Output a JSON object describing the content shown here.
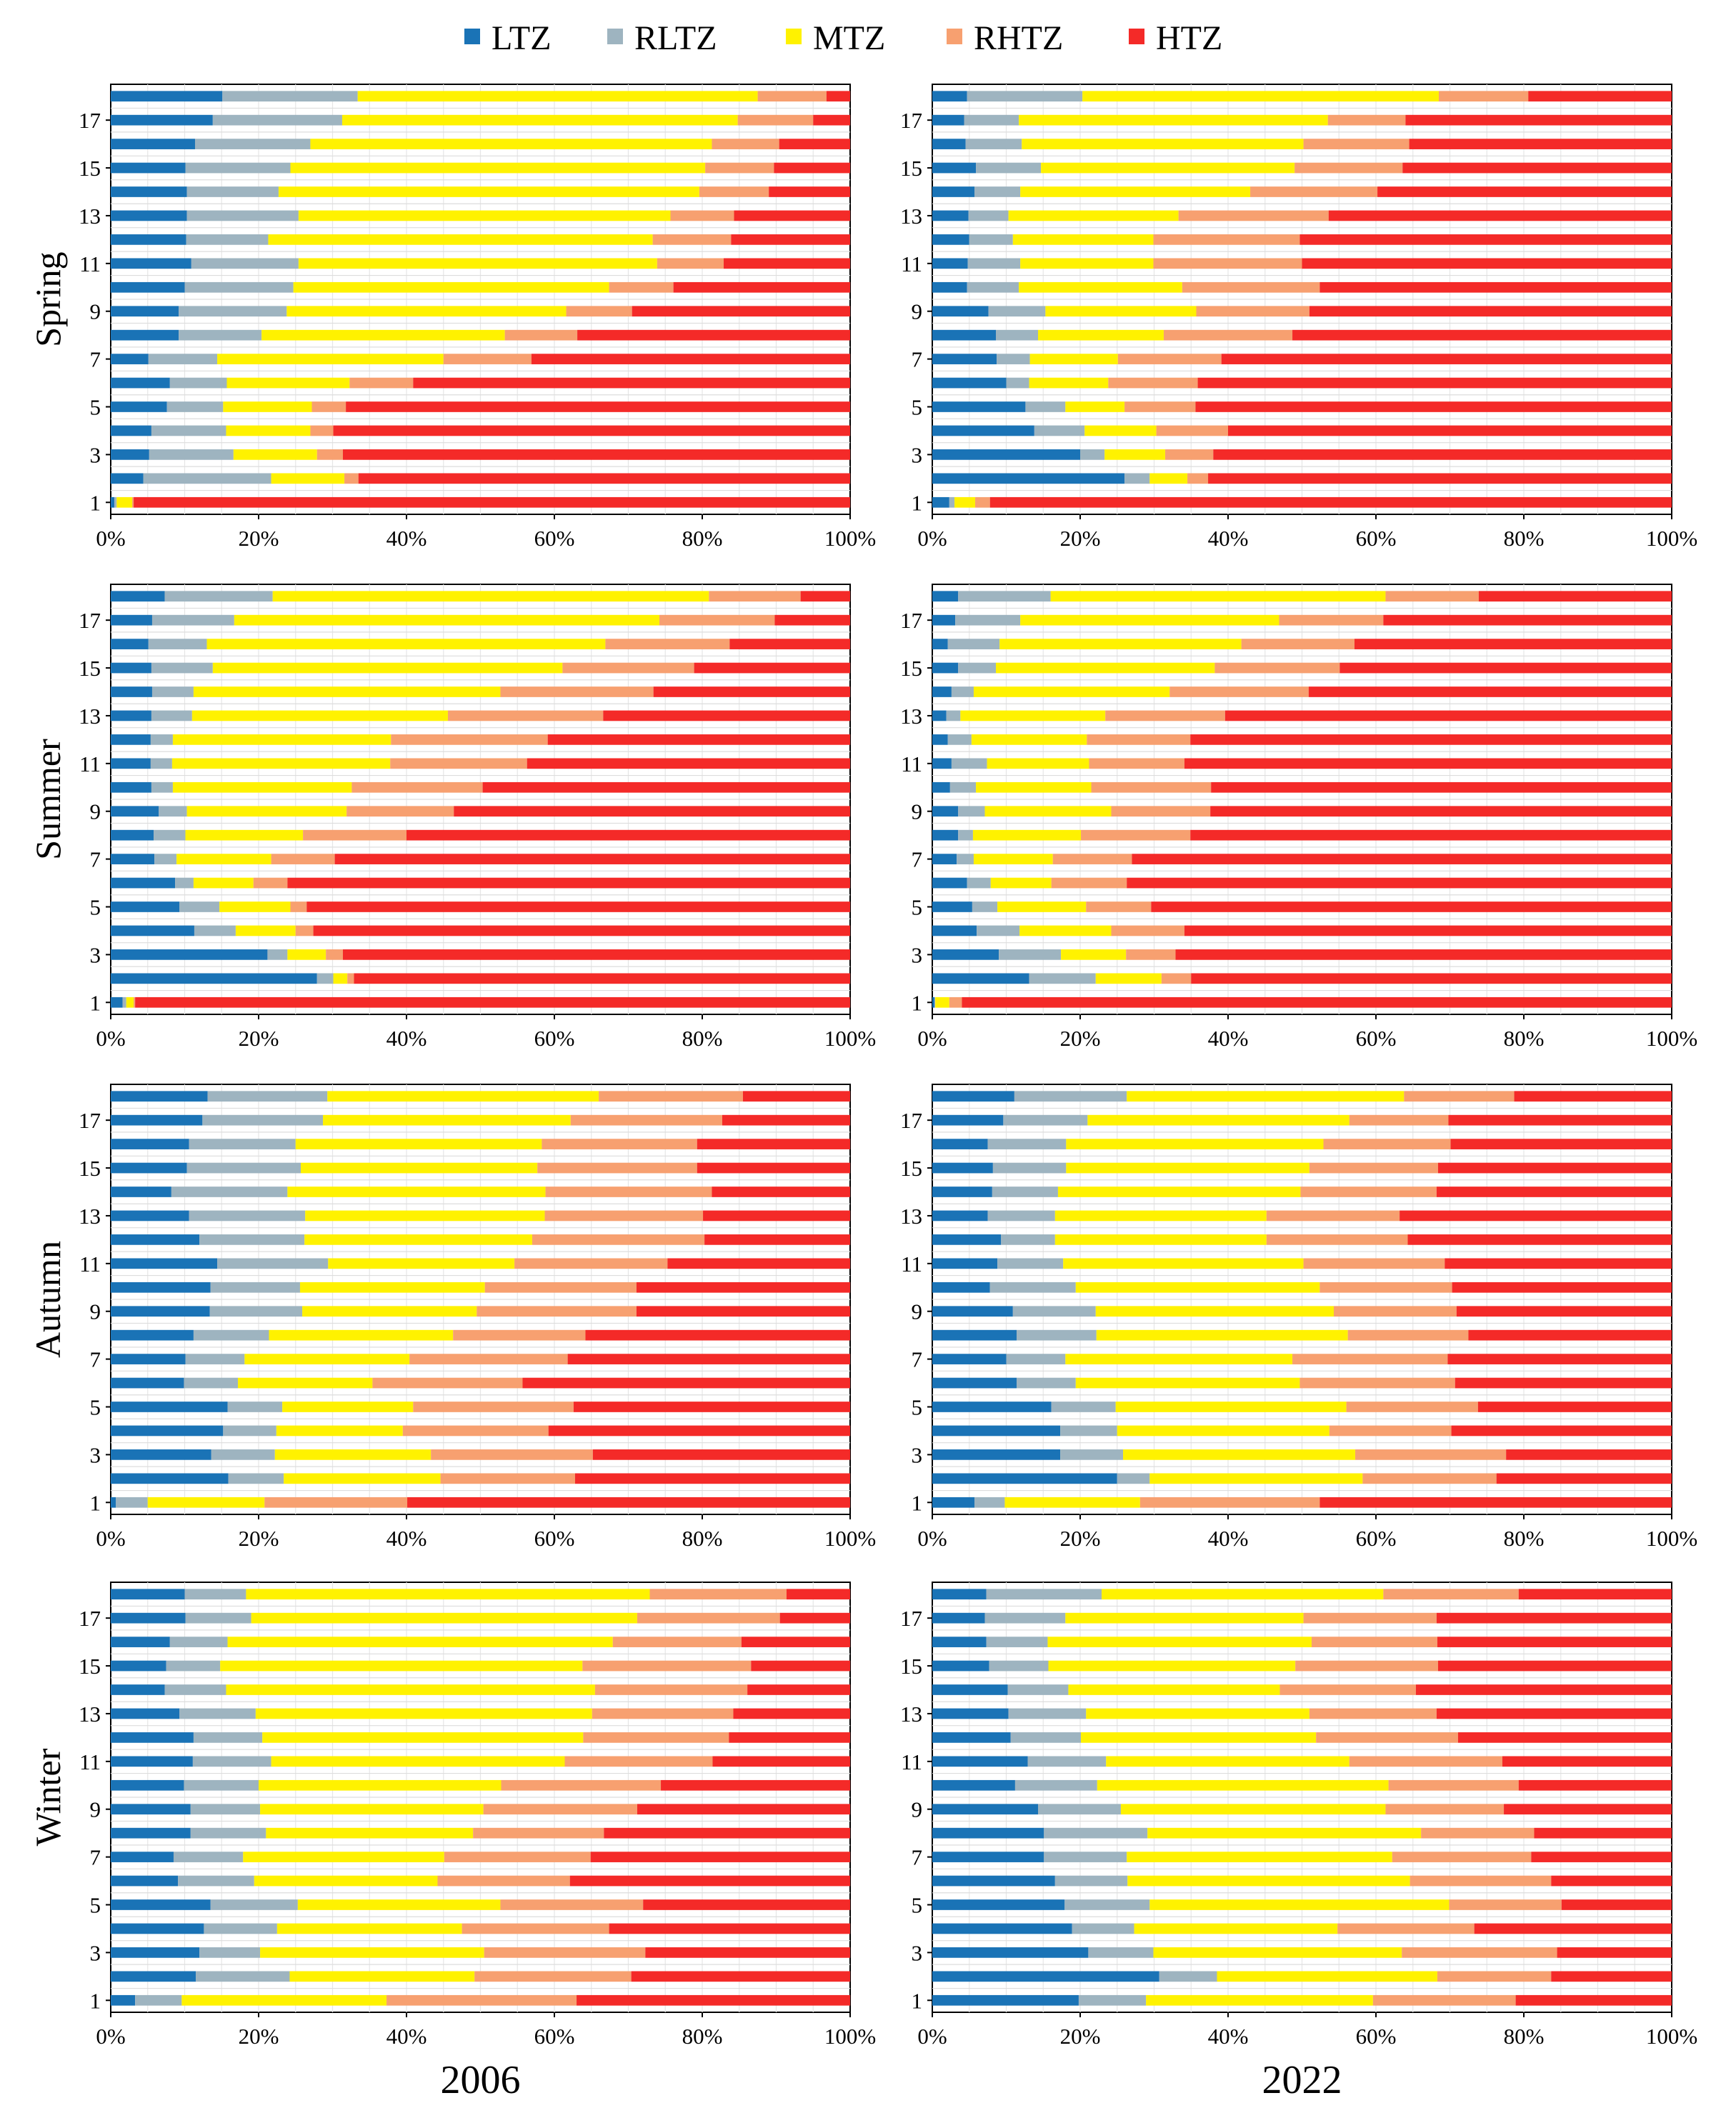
{
  "legend": {
    "items": [
      {
        "key": "LTZ",
        "label": "LTZ",
        "color": "#1a73b6"
      },
      {
        "key": "RLTZ",
        "label": "RLTZ",
        "color": "#9eb4c0"
      },
      {
        "key": "MTZ",
        "label": "MTZ",
        "color": "#fff200"
      },
      {
        "key": "RHTZ",
        "label": "RHTZ",
        "color": "#f7a070"
      },
      {
        "key": "HTZ",
        "label": "HTZ",
        "color": "#f42a28"
      }
    ]
  },
  "columns": [
    "2006",
    "2022"
  ],
  "rows": [
    "Spring",
    "Summer",
    "Autumn",
    "Winter"
  ],
  "chart_data": {
    "type": "bar",
    "orientation": "horizontal",
    "stacked": true,
    "percent": true,
    "series_names": [
      "LTZ",
      "RLTZ",
      "MTZ",
      "RHTZ",
      "HTZ"
    ],
    "categories": [
      1,
      2,
      3,
      4,
      5,
      6,
      7,
      8,
      9,
      10,
      11,
      12,
      13,
      14,
      15,
      16,
      17,
      18
    ],
    "y_tick_labels": [
      "1",
      "3",
      "5",
      "7",
      "9",
      "11",
      "13",
      "15",
      "17"
    ],
    "x_tick_labels": [
      "0%",
      "20%",
      "40%",
      "60%",
      "80%",
      "100%"
    ],
    "xlim": [
      0,
      100
    ],
    "panels": [
      {
        "season": "Spring",
        "year": "2006",
        "values": [
          [
            0.5,
            0.3,
            2.1,
            0.2,
            96.9
          ],
          [
            4.4,
            17.3,
            9.9,
            1.9,
            66.5
          ],
          [
            5.2,
            11.4,
            11.3,
            3.5,
            68.6
          ],
          [
            5.5,
            10.1,
            11.4,
            3.1,
            69.9
          ],
          [
            7.6,
            7.6,
            12.0,
            4.6,
            68.2
          ],
          [
            8.0,
            7.7,
            16.6,
            8.6,
            59.1
          ],
          [
            5.1,
            9.3,
            30.6,
            11.9,
            43.1
          ],
          [
            9.2,
            11.2,
            32.9,
            9.8,
            36.9
          ],
          [
            9.2,
            14.6,
            37.8,
            8.9,
            29.5
          ],
          [
            10.0,
            14.7,
            42.7,
            8.7,
            23.9
          ],
          [
            10.9,
            14.5,
            48.5,
            9.0,
            17.1
          ],
          [
            10.2,
            11.1,
            52.0,
            10.6,
            16.1
          ],
          [
            10.3,
            15.1,
            50.3,
            8.6,
            15.7
          ],
          [
            10.3,
            12.4,
            56.9,
            9.4,
            11.0
          ],
          [
            10.1,
            14.2,
            56.1,
            9.3,
            10.3
          ],
          [
            11.4,
            15.6,
            54.3,
            9.1,
            9.6
          ],
          [
            13.8,
            17.5,
            53.5,
            10.2,
            5.0
          ],
          [
            15.1,
            18.3,
            54.1,
            9.3,
            3.2
          ]
        ]
      },
      {
        "season": "Spring",
        "year": "2022",
        "values": [
          [
            2.3,
            0.7,
            2.8,
            2.0,
            92.2
          ],
          [
            26.0,
            3.4,
            5.1,
            2.8,
            62.7
          ],
          [
            20.0,
            3.3,
            8.2,
            6.5,
            62.0
          ],
          [
            13.8,
            6.8,
            9.7,
            9.7,
            60.0
          ],
          [
            12.6,
            5.4,
            8.0,
            9.6,
            64.4
          ],
          [
            10.0,
            3.1,
            10.7,
            12.1,
            64.1
          ],
          [
            8.7,
            4.5,
            11.9,
            14.0,
            60.9
          ],
          [
            8.6,
            5.7,
            17.0,
            17.4,
            51.3
          ],
          [
            7.6,
            7.7,
            20.4,
            15.3,
            49.0
          ],
          [
            4.7,
            7.0,
            22.1,
            18.6,
            47.6
          ],
          [
            4.8,
            7.1,
            18.0,
            20.1,
            50.0
          ],
          [
            5.0,
            5.9,
            19.0,
            19.8,
            50.3
          ],
          [
            4.9,
            5.4,
            23.0,
            20.3,
            46.4
          ],
          [
            5.7,
            6.2,
            31.1,
            17.2,
            39.8
          ],
          [
            5.9,
            8.8,
            34.3,
            14.6,
            36.4
          ],
          [
            4.5,
            7.6,
            38.1,
            14.3,
            35.5
          ],
          [
            4.3,
            7.4,
            41.8,
            10.5,
            36.0
          ],
          [
            4.7,
            15.6,
            48.2,
            12.1,
            19.4
          ]
        ]
      },
      {
        "season": "Summer",
        "year": "2006",
        "values": [
          [
            1.6,
            0.5,
            1.0,
            0.2,
            96.7
          ],
          [
            27.9,
            2.2,
            1.9,
            0.9,
            67.1
          ],
          [
            21.2,
            2.7,
            5.2,
            2.3,
            68.6
          ],
          [
            11.3,
            5.6,
            8.1,
            2.4,
            72.6
          ],
          [
            9.3,
            5.4,
            9.6,
            2.2,
            73.5
          ],
          [
            8.7,
            2.5,
            8.1,
            4.6,
            76.1
          ],
          [
            5.9,
            3.0,
            12.8,
            8.6,
            69.7
          ],
          [
            5.8,
            4.3,
            15.9,
            14.0,
            60.0
          ],
          [
            6.5,
            3.8,
            21.6,
            14.5,
            53.6
          ],
          [
            5.5,
            2.9,
            24.2,
            17.7,
            49.7
          ],
          [
            5.4,
            2.9,
            29.5,
            18.5,
            43.7
          ],
          [
            5.4,
            3.0,
            29.5,
            21.2,
            40.9
          ],
          [
            5.5,
            5.5,
            34.6,
            21.0,
            33.4
          ],
          [
            5.6,
            5.6,
            41.5,
            20.7,
            26.6
          ],
          [
            5.5,
            8.3,
            47.3,
            17.8,
            21.1
          ],
          [
            5.1,
            7.9,
            53.9,
            16.8,
            16.3
          ],
          [
            5.6,
            11.1,
            57.5,
            15.6,
            10.2
          ],
          [
            7.3,
            14.6,
            59.0,
            12.4,
            6.7
          ]
        ]
      },
      {
        "season": "Summer",
        "year": "2022",
        "values": [
          [
            0.3,
            0.1,
            1.9,
            1.7,
            96.0
          ],
          [
            13.1,
            9.0,
            8.9,
            4.0,
            65.0
          ],
          [
            9.0,
            8.4,
            8.8,
            6.7,
            67.1
          ],
          [
            6.0,
            5.8,
            12.4,
            9.9,
            65.9
          ],
          [
            5.4,
            3.4,
            12.0,
            8.8,
            70.4
          ],
          [
            4.7,
            3.2,
            8.2,
            10.2,
            73.7
          ],
          [
            3.3,
            2.3,
            10.7,
            10.7,
            73.0
          ],
          [
            3.5,
            2.0,
            14.6,
            14.8,
            65.1
          ],
          [
            3.5,
            3.6,
            17.1,
            13.4,
            62.4
          ],
          [
            2.4,
            3.5,
            15.6,
            16.2,
            62.3
          ],
          [
            2.6,
            4.8,
            13.8,
            12.9,
            65.9
          ],
          [
            2.1,
            3.2,
            15.6,
            14.0,
            65.1
          ],
          [
            1.9,
            1.9,
            19.6,
            16.2,
            60.4
          ],
          [
            2.6,
            3.0,
            26.5,
            18.8,
            49.1
          ],
          [
            3.5,
            5.1,
            29.6,
            16.9,
            44.9
          ],
          [
            2.1,
            7.0,
            32.7,
            15.3,
            42.9
          ],
          [
            3.1,
            8.8,
            35.0,
            14.1,
            39.0
          ],
          [
            3.5,
            12.5,
            45.3,
            12.6,
            26.1
          ]
        ]
      },
      {
        "season": "Autumn",
        "year": "2006",
        "values": [
          [
            0.7,
            4.3,
            15.8,
            19.3,
            59.9
          ],
          [
            15.9,
            7.5,
            21.2,
            18.2,
            37.2
          ],
          [
            13.6,
            8.6,
            21.1,
            21.9,
            34.8
          ],
          [
            15.2,
            7.2,
            17.1,
            19.7,
            40.8
          ],
          [
            15.8,
            7.4,
            17.7,
            21.7,
            37.4
          ],
          [
            9.9,
            7.3,
            18.2,
            20.3,
            44.3
          ],
          [
            10.1,
            8.0,
            22.3,
            21.4,
            38.2
          ],
          [
            11.2,
            10.2,
            24.9,
            17.9,
            35.8
          ],
          [
            13.4,
            12.5,
            23.6,
            21.6,
            28.9
          ],
          [
            13.5,
            12.1,
            25.0,
            20.5,
            28.9
          ],
          [
            14.4,
            15.0,
            25.2,
            20.7,
            24.7
          ],
          [
            12.0,
            14.2,
            30.8,
            23.3,
            19.7
          ],
          [
            10.6,
            15.7,
            32.4,
            21.4,
            19.9
          ],
          [
            8.2,
            15.7,
            34.9,
            22.5,
            18.7
          ],
          [
            10.3,
            15.4,
            32.0,
            21.6,
            20.7
          ],
          [
            10.6,
            14.4,
            33.3,
            21.0,
            20.7
          ],
          [
            12.4,
            16.3,
            33.5,
            20.5,
            17.3
          ],
          [
            13.1,
            16.2,
            36.7,
            19.5,
            14.5
          ]
        ]
      },
      {
        "season": "Autumn",
        "year": "2022",
        "values": [
          [
            5.7,
            4.1,
            18.3,
            24.3,
            47.6
          ],
          [
            25.0,
            4.4,
            28.8,
            18.1,
            23.7
          ],
          [
            17.3,
            8.5,
            31.4,
            20.4,
            22.4
          ],
          [
            17.3,
            7.7,
            28.7,
            16.5,
            29.8
          ],
          [
            16.1,
            8.7,
            31.2,
            17.8,
            26.2
          ],
          [
            11.4,
            8.0,
            30.3,
            21.0,
            29.3
          ],
          [
            10.0,
            8.0,
            30.7,
            21.0,
            30.3
          ],
          [
            11.4,
            10.8,
            34.0,
            16.3,
            27.5
          ],
          [
            10.9,
            11.2,
            32.2,
            16.6,
            29.1
          ],
          [
            7.8,
            11.6,
            33.0,
            17.9,
            29.7
          ],
          [
            8.8,
            8.9,
            32.5,
            19.1,
            30.7
          ],
          [
            9.3,
            7.3,
            28.6,
            19.1,
            35.7
          ],
          [
            7.5,
            9.1,
            28.6,
            18.0,
            36.8
          ],
          [
            8.1,
            8.9,
            32.8,
            18.4,
            31.8
          ],
          [
            8.2,
            9.9,
            32.9,
            17.4,
            31.6
          ],
          [
            7.5,
            10.6,
            34.8,
            17.2,
            29.9
          ],
          [
            9.6,
            11.4,
            35.4,
            13.4,
            30.2
          ],
          [
            11.1,
            15.2,
            37.5,
            14.9,
            21.3
          ]
        ]
      },
      {
        "season": "Winter",
        "year": "2006",
        "values": [
          [
            3.3,
            6.3,
            27.7,
            25.7,
            37.0
          ],
          [
            11.5,
            12.7,
            25.0,
            21.2,
            29.6
          ],
          [
            12.0,
            8.2,
            30.3,
            21.8,
            27.7
          ],
          [
            12.6,
            9.9,
            25.0,
            19.9,
            32.6
          ],
          [
            13.5,
            11.8,
            27.4,
            19.3,
            28.0
          ],
          [
            9.1,
            10.3,
            24.8,
            17.9,
            37.9
          ],
          [
            8.5,
            9.4,
            27.2,
            19.8,
            35.1
          ],
          [
            10.8,
            10.2,
            28.0,
            17.7,
            33.3
          ],
          [
            10.8,
            9.4,
            30.2,
            20.8,
            28.8
          ],
          [
            9.9,
            10.1,
            32.8,
            21.6,
            25.6
          ],
          [
            11.1,
            10.6,
            39.7,
            20.0,
            18.6
          ],
          [
            11.2,
            9.3,
            43.4,
            19.7,
            16.4
          ],
          [
            9.3,
            10.3,
            45.5,
            19.1,
            15.8
          ],
          [
            7.3,
            8.3,
            49.9,
            20.6,
            13.9
          ],
          [
            7.5,
            7.3,
            49.0,
            22.8,
            13.4
          ],
          [
            8.0,
            7.8,
            52.1,
            17.4,
            14.7
          ],
          [
            10.1,
            8.9,
            52.2,
            19.3,
            9.5
          ],
          [
            10.0,
            8.3,
            54.6,
            18.5,
            8.6
          ]
        ]
      },
      {
        "season": "Winter",
        "year": "2022",
        "values": [
          [
            19.8,
            9.1,
            30.7,
            19.3,
            21.1
          ],
          [
            30.7,
            7.8,
            29.8,
            15.4,
            16.3
          ],
          [
            21.1,
            8.8,
            33.6,
            21.0,
            15.5
          ],
          [
            18.9,
            8.4,
            27.5,
            18.5,
            26.7
          ],
          [
            17.9,
            11.5,
            40.5,
            15.2,
            14.9
          ],
          [
            16.6,
            9.8,
            38.2,
            19.1,
            16.3
          ],
          [
            15.1,
            11.2,
            35.9,
            18.8,
            19.0
          ],
          [
            15.1,
            14.0,
            37.0,
            15.3,
            18.6
          ],
          [
            14.3,
            11.2,
            35.8,
            16.0,
            22.7
          ],
          [
            11.2,
            11.1,
            39.4,
            17.6,
            20.7
          ],
          [
            12.9,
            10.6,
            32.9,
            20.7,
            22.9
          ],
          [
            10.6,
            9.5,
            31.8,
            19.2,
            28.9
          ],
          [
            10.3,
            10.5,
            30.2,
            17.2,
            31.8
          ],
          [
            10.2,
            8.2,
            28.6,
            18.4,
            34.6
          ],
          [
            7.7,
            8.0,
            33.4,
            19.3,
            31.6
          ],
          [
            7.3,
            8.3,
            35.7,
            17.0,
            31.7
          ],
          [
            7.1,
            10.9,
            32.2,
            18.0,
            31.8
          ],
          [
            7.3,
            15.6,
            38.1,
            18.3,
            20.7
          ]
        ]
      }
    ]
  }
}
